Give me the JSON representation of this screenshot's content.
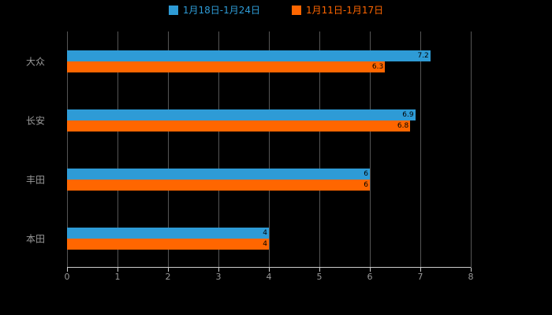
{
  "legend": {
    "items": [
      {
        "label": "1月18日-1月24日",
        "color": "#2E9BD6"
      },
      {
        "label": "1月11日-1月17日",
        "color": "#FF6600"
      }
    ]
  },
  "colors": {
    "background": "#000000",
    "gridline": "#555555",
    "axis_line": "#cccccc",
    "tick_label": "#999999",
    "category_label": "#999999",
    "bar_value_label": "#000000",
    "series1": "#2E9BD6",
    "series2": "#FF6600"
  },
  "chart_data": {
    "type": "bar",
    "orientation": "horizontal",
    "title": "",
    "xlabel": "",
    "ylabel": "",
    "categories": [
      "大众",
      "长安",
      "丰田",
      "本田"
    ],
    "series": [
      {
        "name": "1月18日-1月24日",
        "color": "#2E9BD6",
        "values": [
          7.2,
          6.9,
          6.0,
          4.0
        ]
      },
      {
        "name": "1月11日-1月17日",
        "color": "#FF6600",
        "values": [
          6.3,
          6.8,
          6.0,
          4.0
        ]
      }
    ],
    "xlim": [
      0,
      8
    ],
    "xticks": [
      0,
      1,
      2,
      3,
      4,
      5,
      6,
      7,
      8
    ],
    "grid": true,
    "legend_position": "top"
  }
}
